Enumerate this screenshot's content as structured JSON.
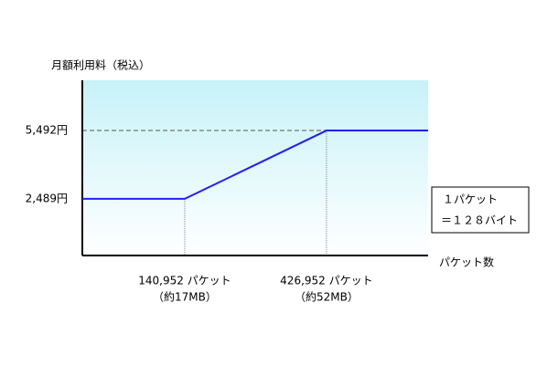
{
  "chart_data": {
    "type": "line",
    "ylabel": "月額利用料（税込）",
    "xlabel": "パケット数",
    "x": [
      -65700,
      140952,
      426952,
      632000
    ],
    "series": [
      {
        "color": "#1f1fff",
        "values": [
          2489,
          2489,
          5492,
          5492
        ]
      }
    ],
    "xlim": [
      -65700,
      632000
    ],
    "ylim": [
      0,
      7700
    ],
    "xticks": [
      {
        "value": 140952,
        "label": "140,952 パケット"
      },
      {
        "value": 426952,
        "label": "426,952 パケット"
      }
    ],
    "xtick_notes": [
      "（約17MB）",
      "（約52MB）"
    ],
    "yticks": [
      {
        "value": 5492,
        "label": "5,492円"
      },
      {
        "value": 2489,
        "label": "2,489円"
      }
    ],
    "annotation": [
      "１パケット",
      "＝１２８バイト"
    ]
  }
}
